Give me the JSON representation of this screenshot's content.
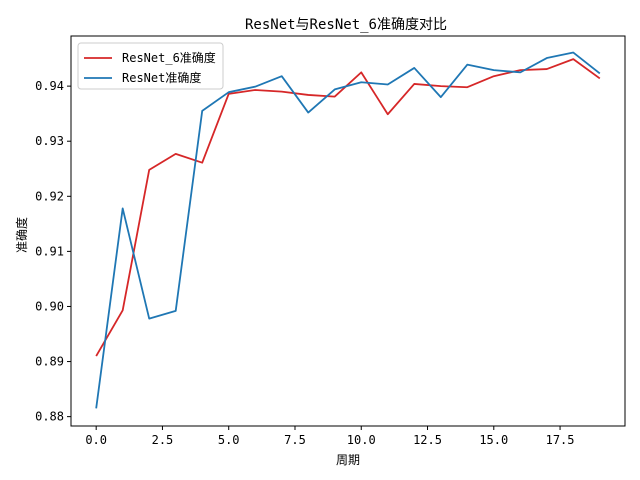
{
  "chart_data": {
    "type": "line",
    "title": "ResNet与ResNet_6准确度对比",
    "xlabel": "周期",
    "ylabel": "准确度",
    "xlim": [
      -0.95,
      19.95
    ],
    "ylim": [
      0.8783,
      0.9491
    ],
    "xticks": [
      0.0,
      2.5,
      5.0,
      7.5,
      10.0,
      12.5,
      15.0,
      17.5
    ],
    "xtick_labels": [
      "0.0",
      "2.5",
      "5.0",
      "7.5",
      "10.0",
      "12.5",
      "15.0",
      "17.5"
    ],
    "yticks": [
      0.88,
      0.89,
      0.9,
      0.91,
      0.92,
      0.93,
      0.94
    ],
    "ytick_labels": [
      "0.88",
      "0.89",
      "0.90",
      "0.91",
      "0.92",
      "0.93",
      "0.94"
    ],
    "grid": false,
    "legend_position": "top-left",
    "x": [
      0,
      1,
      2,
      3,
      4,
      5,
      6,
      7,
      8,
      9,
      10,
      11,
      12,
      13,
      14,
      15,
      16,
      17,
      18,
      19
    ],
    "series": [
      {
        "name": "ResNet_6准确度",
        "color": "#d62728",
        "values": [
          0.891,
          0.8993,
          0.9248,
          0.9277,
          0.9261,
          0.9386,
          0.9393,
          0.939,
          0.9384,
          0.9381,
          0.9425,
          0.9349,
          0.9404,
          0.94,
          0.9398,
          0.9418,
          0.9429,
          0.9431,
          0.9449,
          0.9414
        ]
      },
      {
        "name": "ResNet准确度",
        "color": "#1f77b4",
        "values": [
          0.8815,
          0.9178,
          0.8978,
          0.8992,
          0.9355,
          0.9389,
          0.9399,
          0.9418,
          0.9352,
          0.9394,
          0.9407,
          0.9403,
          0.9433,
          0.938,
          0.9439,
          0.9429,
          0.9425,
          0.9451,
          0.9461,
          0.9423
        ]
      }
    ]
  }
}
